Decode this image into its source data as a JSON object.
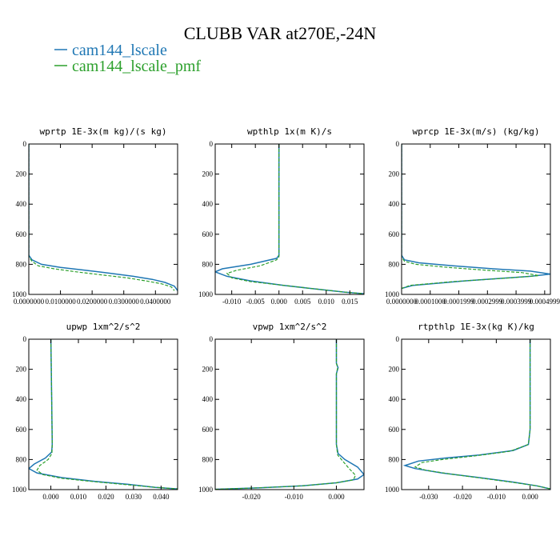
{
  "figure": {
    "title": "CLUBB VAR at270E,-24N",
    "legend": [
      {
        "label": "cam144_lscale",
        "color": "#1f77b4",
        "dash": "solid"
      },
      {
        "label": "cam144_lscale_pmf",
        "color": "#2ca02c",
        "dash": "dashed"
      }
    ]
  },
  "chart_data": [
    {
      "type": "line",
      "title": "wprtp  1E-3x(m kg)/(s kg)",
      "xlim": [
        0.0,
        0.047
      ],
      "ylim": [
        1000,
        0
      ],
      "xticks": [
        0.0,
        0.01,
        0.02,
        0.03,
        0.04
      ],
      "xticklabels": [
        "0.0000000",
        "0.0100000",
        "0.0200000",
        "0.0300000",
        "0.0400000"
      ],
      "yticks": [
        0,
        200,
        400,
        600,
        800,
        1000
      ],
      "series": [
        {
          "name": "cam144_lscale",
          "x": [
            0,
            0,
            0.001,
            0.004,
            0.01,
            0.018,
            0.026,
            0.033,
            0.039,
            0.043,
            0.046,
            0.047
          ],
          "y": [
            0,
            740,
            770,
            800,
            820,
            840,
            860,
            880,
            900,
            920,
            945,
            975
          ]
        },
        {
          "name": "cam144_lscale_pmf",
          "x": [
            0,
            0,
            0.001,
            0.003,
            0.008,
            0.015,
            0.023,
            0.031,
            0.037,
            0.042,
            0.045,
            0.046
          ],
          "y": [
            0,
            750,
            780,
            810,
            830,
            850,
            870,
            890,
            910,
            930,
            950,
            975
          ]
        }
      ]
    },
    {
      "type": "line",
      "title": "wpthlp  1x(m K)/s",
      "xlim": [
        -0.0135,
        0.018
      ],
      "ylim": [
        1000,
        0
      ],
      "xticks": [
        -0.01,
        -0.005,
        0.0,
        0.005,
        0.01,
        0.015
      ],
      "xticklabels": [
        "-0.010",
        "-0.005",
        "0.000",
        "0.005",
        "0.010",
        "0.015"
      ],
      "yticks": [
        0,
        200,
        400,
        600,
        800,
        1000
      ],
      "series": [
        {
          "name": "cam144_lscale",
          "x": [
            0,
            0,
            0,
            -0.0005,
            -0.006,
            -0.012,
            -0.0135,
            -0.011,
            -0.006,
            0.001,
            0.008,
            0.014,
            0.018
          ],
          "y": [
            0,
            600,
            740,
            760,
            800,
            830,
            850,
            880,
            910,
            940,
            965,
            985,
            995
          ]
        },
        {
          "name": "cam144_lscale_pmf",
          "x": [
            0,
            0,
            0,
            -0.0005,
            -0.004,
            -0.009,
            -0.011,
            -0.01,
            -0.006,
            0.001,
            0.008,
            0.014,
            0.018
          ],
          "y": [
            0,
            600,
            750,
            770,
            810,
            840,
            860,
            890,
            915,
            940,
            965,
            985,
            995
          ]
        }
      ]
    },
    {
      "type": "line",
      "title": "wprcp  1E-3x(m/s) (kg/kg)",
      "xlim": [
        0.0,
        0.00052
      ],
      "ylim": [
        1000,
        0
      ],
      "xticks": [
        0.0,
        0.0001,
        0.0002,
        0.0003,
        0.0004,
        0.0005
      ],
      "xticklabels": [
        "0.0000000",
        "0.0001000",
        "0.0001999",
        "0.0002999",
        "0.0003999",
        "0.0004999"
      ],
      "yticks": [
        0,
        200,
        400,
        600,
        800,
        1000
      ],
      "series": [
        {
          "name": "cam144_lscale",
          "x": [
            0,
            0,
            1e-05,
            6e-05,
            0.00018,
            0.00032,
            0.00045,
            0.00052,
            0.00045,
            0.00022,
            4e-05,
            0
          ],
          "y": [
            0,
            740,
            770,
            790,
            810,
            830,
            845,
            865,
            880,
            910,
            940,
            960
          ]
        },
        {
          "name": "cam144_lscale_pmf",
          "x": [
            0,
            0,
            1e-05,
            5e-05,
            0.00016,
            0.0003,
            0.00042,
            0.00048,
            0.00038,
            0.00018,
            3e-05,
            0
          ],
          "y": [
            0,
            750,
            780,
            800,
            820,
            840,
            855,
            875,
            890,
            915,
            940,
            960
          ]
        }
      ]
    },
    {
      "type": "line",
      "title": "upwp  1xm^2/s^2",
      "xlim": [
        -0.008,
        0.046
      ],
      "ylim": [
        1000,
        0
      ],
      "xticks": [
        0.0,
        0.01,
        0.02,
        0.03,
        0.04
      ],
      "xticklabels": [
        "0.000",
        "0.010",
        "0.020",
        "0.030",
        "0.040"
      ],
      "yticks": [
        0,
        200,
        400,
        600,
        800,
        1000
      ],
      "series": [
        {
          "name": "cam144_lscale",
          "x": [
            0,
            0.0003,
            0.0005,
            0.0003,
            -0.002,
            -0.006,
            -0.008,
            -0.005,
            0.004,
            0.016,
            0.028,
            0.038,
            0.046
          ],
          "y": [
            0,
            400,
            700,
            750,
            790,
            830,
            860,
            890,
            920,
            945,
            965,
            985,
            995
          ]
        },
        {
          "name": "cam144_lscale_pmf",
          "x": [
            0,
            0.0003,
            0.0005,
            0.0004,
            -0.001,
            -0.004,
            -0.005,
            -0.003,
            0.004,
            0.016,
            0.028,
            0.038,
            0.046
          ],
          "y": [
            0,
            400,
            700,
            760,
            800,
            840,
            870,
            900,
            925,
            948,
            968,
            985,
            995
          ]
        }
      ]
    },
    {
      "type": "line",
      "title": "vpwp  1xm^2/s^2",
      "xlim": [
        -0.0285,
        0.0065
      ],
      "ylim": [
        1000,
        0
      ],
      "xticks": [
        -0.02,
        -0.01,
        0.0
      ],
      "xticklabels": [
        "-0.020",
        "-0.010",
        "0.000"
      ],
      "yticks": [
        0,
        200,
        400,
        600,
        800,
        1000
      ],
      "series": [
        {
          "name": "cam144_lscale",
          "x": [
            0,
            0,
            0.0004,
            0,
            0,
            0.0004,
            0.002,
            0.005,
            0.0065,
            0.005,
            0,
            -0.008,
            -0.018,
            -0.0285
          ],
          "y": [
            0,
            160,
            190,
            230,
            700,
            760,
            800,
            850,
            900,
            930,
            955,
            975,
            988,
            998
          ]
        },
        {
          "name": "cam144_lscale_pmf",
          "x": [
            0,
            0,
            0.0003,
            0,
            0,
            0.0003,
            0.0015,
            0.003,
            0.0045,
            0.004,
            0,
            -0.008,
            -0.018,
            -0.0285
          ],
          "y": [
            0,
            160,
            190,
            230,
            700,
            770,
            810,
            860,
            905,
            935,
            955,
            975,
            988,
            998
          ]
        }
      ]
    },
    {
      "type": "line",
      "title": "rtpthlp  1E-3x(kg K)/kg",
      "xlim": [
        -0.038,
        0.006
      ],
      "ylim": [
        1000,
        0
      ],
      "xticks": [
        -0.03,
        -0.02,
        -0.01,
        0.0
      ],
      "xticklabels": [
        "-0.030",
        "-0.020",
        "-0.010",
        "0.000"
      ],
      "yticks": [
        0,
        200,
        400,
        600,
        800,
        1000
      ],
      "series": [
        {
          "name": "cam144_lscale",
          "x": [
            0,
            0,
            -0.0005,
            -0.005,
            -0.015,
            -0.025,
            -0.033,
            -0.037,
            -0.034,
            -0.026,
            -0.015,
            -0.005,
            0.002,
            0.006
          ],
          "y": [
            0,
            600,
            700,
            740,
            770,
            790,
            810,
            840,
            860,
            890,
            920,
            950,
            975,
            995
          ]
        },
        {
          "name": "cam144_lscale_pmf",
          "x": [
            0,
            0,
            -0.0005,
            -0.006,
            -0.016,
            -0.026,
            -0.032,
            -0.034,
            -0.031,
            -0.024,
            -0.014,
            -0.005,
            0.002,
            0.006
          ],
          "y": [
            0,
            600,
            700,
            745,
            775,
            800,
            820,
            850,
            870,
            895,
            925,
            952,
            975,
            995
          ]
        }
      ]
    }
  ]
}
